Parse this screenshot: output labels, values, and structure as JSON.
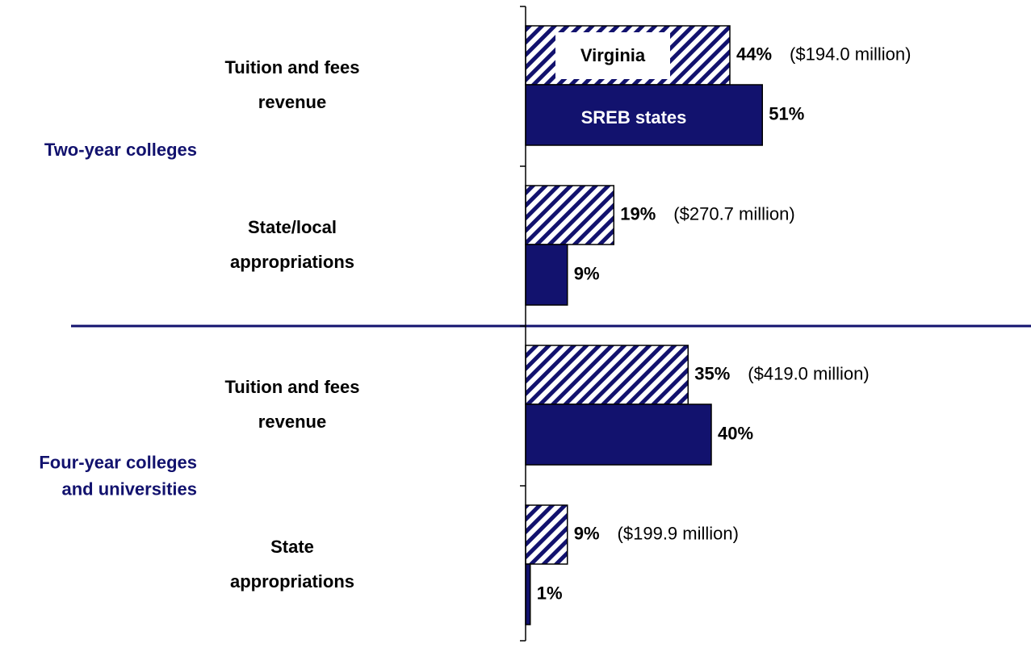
{
  "chart_data": {
    "type": "hbar",
    "groups": [
      {
        "lines": [
          "Two-year colleges"
        ]
      },
      {
        "lines": [
          "Four-year colleges",
          "and universities"
        ]
      }
    ],
    "categories": [
      [
        "Tuition and fees",
        "revenue"
      ],
      [
        "State/local",
        "appropriations"
      ],
      [
        "Tuition and fees",
        "revenue"
      ],
      [
        "State",
        "appropriations"
      ]
    ],
    "series": [
      {
        "name": "Virginia",
        "color": "#12126e",
        "pattern": "hatch",
        "values": [
          44,
          19,
          35,
          9
        ],
        "value_labels": [
          "44%",
          "19%",
          "35%",
          "9%"
        ]
      },
      {
        "name": "SREB states",
        "color": "#12126e",
        "pattern": "solid",
        "values": [
          51,
          9,
          40,
          1
        ],
        "value_labels": [
          "51%",
          "9%",
          "40%",
          "1%"
        ]
      }
    ],
    "annotations": [
      "($194.0 million)",
      "($270.7 million)",
      "($419.0 million)",
      "($199.9 million)"
    ]
  }
}
